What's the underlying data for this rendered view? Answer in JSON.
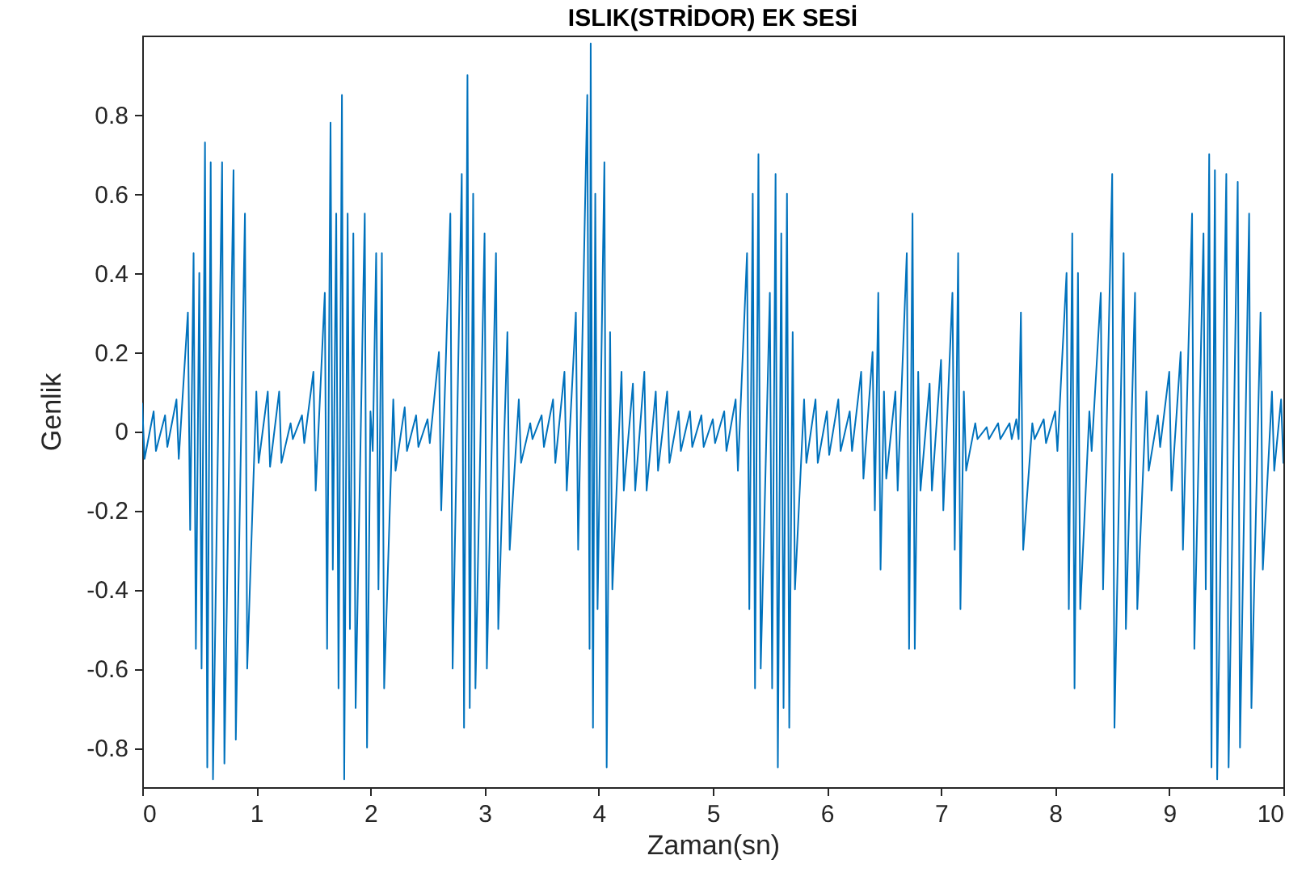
{
  "chart_data": {
    "type": "line",
    "title": "ISLIK(STRİDOR) EK SESİ",
    "xlabel": "Zaman(sn)",
    "ylabel": "Genlik",
    "xlim": [
      0,
      10
    ],
    "xticks": [
      0,
      1,
      2,
      3,
      4,
      5,
      6,
      7,
      8,
      9,
      10
    ],
    "ylim": [
      -0.9,
      1.0
    ],
    "yticks": [
      -0.8,
      -0.6,
      -0.4,
      -0.2,
      0,
      0.2,
      0.4,
      0.6,
      0.8
    ],
    "grid": false,
    "marker": "none",
    "line_style": "solid",
    "series": [
      {
        "color": "#0072bd",
        "x": [
          0,
          0.02,
          0.1,
          0.12,
          0.2,
          0.22,
          0.3,
          0.32,
          0.4,
          0.42,
          0.45,
          0.47,
          0.5,
          0.52,
          0.55,
          0.57,
          0.6,
          0.62,
          0.7,
          0.72,
          0.8,
          0.82,
          0.9,
          0.92,
          1,
          1.02,
          1.1,
          1.12,
          1.2,
          1.22,
          1.3,
          1.32,
          1.4,
          1.42,
          1.5,
          1.52,
          1.6,
          1.62,
          1.65,
          1.67,
          1.7,
          1.72,
          1.75,
          1.77,
          1.8,
          1.82,
          1.85,
          1.87,
          1.95,
          1.97,
          2,
          2.02,
          2.05,
          2.07,
          2.1,
          2.12,
          2.2,
          2.22,
          2.3,
          2.32,
          2.4,
          2.42,
          2.5,
          2.52,
          2.6,
          2.62,
          2.7,
          2.72,
          2.8,
          2.82,
          2.85,
          2.87,
          2.9,
          2.92,
          3,
          3.02,
          3.1,
          3.12,
          3.2,
          3.22,
          3.3,
          3.32,
          3.4,
          3.42,
          3.5,
          3.52,
          3.6,
          3.62,
          3.7,
          3.72,
          3.8,
          3.82,
          3.9,
          3.92,
          3.93,
          3.95,
          3.97,
          3.99,
          4.05,
          4.07,
          4.1,
          4.12,
          4.2,
          4.22,
          4.3,
          4.32,
          4.4,
          4.42,
          4.5,
          4.52,
          4.6,
          4.62,
          4.7,
          4.72,
          4.8,
          4.82,
          4.9,
          4.92,
          5,
          5.02,
          5.1,
          5.12,
          5.2,
          5.22,
          5.3,
          5.32,
          5.35,
          5.37,
          5.4,
          5.42,
          5.5,
          5.52,
          5.55,
          5.57,
          5.6,
          5.62,
          5.65,
          5.67,
          5.7,
          5.72,
          5.8,
          5.82,
          5.9,
          5.92,
          6,
          6.02,
          6.1,
          6.12,
          6.2,
          6.22,
          6.3,
          6.32,
          6.4,
          6.42,
          6.45,
          6.47,
          6.5,
          6.52,
          6.6,
          6.62,
          6.7,
          6.72,
          6.75,
          6.77,
          6.8,
          6.82,
          6.9,
          6.92,
          7,
          7.02,
          7.1,
          7.12,
          7.15,
          7.17,
          7.2,
          7.22,
          7.3,
          7.32,
          7.4,
          7.42,
          7.5,
          7.52,
          7.6,
          7.62,
          7.66,
          7.68,
          7.7,
          7.72,
          7.8,
          7.82,
          7.9,
          7.92,
          8,
          8.02,
          8.1,
          8.12,
          8.15,
          8.17,
          8.2,
          8.22,
          8.3,
          8.32,
          8.4,
          8.42,
          8.5,
          8.52,
          8.6,
          8.62,
          8.7,
          8.72,
          8.8,
          8.82,
          8.9,
          8.92,
          9,
          9.02,
          9.1,
          9.12,
          9.2,
          9.22,
          9.3,
          9.32,
          9.35,
          9.37,
          9.4,
          9.42,
          9.5,
          9.52,
          9.6,
          9.62,
          9.7,
          9.72,
          9.8,
          9.82,
          9.9,
          9.92,
          9.98,
          10
        ],
        "values": [
          0.07,
          -0.07,
          0.05,
          -0.05,
          0.04,
          -0.04,
          0.08,
          -0.07,
          0.3,
          -0.25,
          0.45,
          -0.55,
          0.4,
          -0.6,
          0.73,
          -0.85,
          0.68,
          -0.88,
          0.68,
          -0.84,
          0.66,
          -0.78,
          0.55,
          -0.6,
          0.1,
          -0.08,
          0.1,
          -0.09,
          0.1,
          -0.08,
          0.02,
          -0.02,
          0.04,
          -0.03,
          0.15,
          -0.15,
          0.35,
          -0.55,
          0.78,
          -0.35,
          0.55,
          -0.65,
          0.85,
          -0.88,
          0.55,
          -0.5,
          0.5,
          -0.7,
          0.55,
          -0.8,
          0.05,
          -0.05,
          0.45,
          -0.4,
          0.45,
          -0.65,
          0.08,
          -0.1,
          0.06,
          -0.05,
          0.04,
          -0.04,
          0.03,
          -0.03,
          0.2,
          -0.2,
          0.55,
          -0.6,
          0.65,
          -0.75,
          0.9,
          -0.7,
          0.6,
          -0.65,
          0.5,
          -0.6,
          0.45,
          -0.5,
          0.25,
          -0.3,
          0.08,
          -0.08,
          0.02,
          -0.02,
          0.04,
          -0.04,
          0.08,
          -0.08,
          0.15,
          -0.15,
          0.3,
          -0.3,
          0.85,
          -0.55,
          0.98,
          -0.75,
          0.6,
          -0.45,
          0.68,
          -0.85,
          0.25,
          -0.4,
          0.15,
          -0.15,
          0.12,
          -0.15,
          0.15,
          -0.15,
          0.1,
          -0.1,
          0.1,
          -0.08,
          0.05,
          -0.05,
          0.05,
          -0.04,
          0.04,
          -0.04,
          0.03,
          -0.03,
          0.05,
          -0.05,
          0.08,
          -0.1,
          0.45,
          -0.45,
          0.6,
          -0.65,
          0.7,
          -0.6,
          0.35,
          -0.65,
          0.65,
          -0.85,
          0.5,
          -0.7,
          0.6,
          -0.75,
          0.25,
          -0.4,
          0.08,
          -0.08,
          0.08,
          -0.08,
          0.05,
          -0.06,
          0.08,
          -0.05,
          0.05,
          -0.05,
          0.15,
          -0.12,
          0.2,
          -0.2,
          0.35,
          -0.35,
          0.1,
          -0.12,
          0.1,
          -0.15,
          0.45,
          -0.55,
          0.55,
          -0.55,
          0.15,
          -0.15,
          0.12,
          -0.15,
          0.18,
          -0.2,
          0.35,
          -0.3,
          0.45,
          -0.45,
          0.1,
          -0.1,
          0.02,
          -0.02,
          0.01,
          -0.02,
          0.02,
          -0.02,
          0.02,
          -0.02,
          0.03,
          -0.02,
          0.3,
          -0.3,
          0.02,
          -0.02,
          0.03,
          -0.03,
          0.05,
          -0.05,
          0.4,
          -0.45,
          0.5,
          -0.65,
          0.4,
          -0.45,
          0.05,
          -0.05,
          0.35,
          -0.4,
          0.65,
          -0.75,
          0.45,
          -0.5,
          0.35,
          -0.45,
          0.1,
          -0.1,
          0.04,
          -0.04,
          0.15,
          -0.15,
          0.2,
          -0.3,
          0.55,
          -0.55,
          0.5,
          -0.4,
          0.7,
          -0.85,
          0.66,
          -0.88,
          0.65,
          -0.85,
          0.63,
          -0.8,
          0.55,
          -0.7,
          0.3,
          -0.35,
          0.1,
          -0.1,
          0.08,
          -0.08
        ]
      }
    ]
  }
}
